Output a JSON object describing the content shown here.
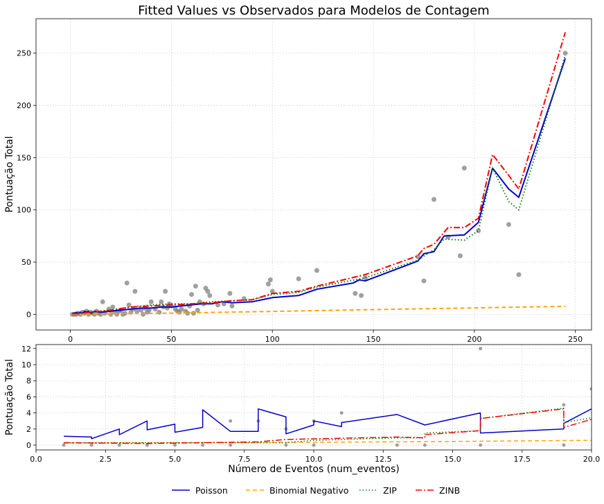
{
  "chart_data": [
    {
      "type": "line",
      "title": "Fitted Values vs Observados para Modelos de Contagem",
      "xlabel": "",
      "ylabel": "Pontuação Total",
      "xlim": [
        -17,
        258
      ],
      "ylim": [
        -15,
        283
      ],
      "xticks": [
        0,
        50,
        100,
        150,
        200,
        250
      ],
      "xtick_labels": [
        "0",
        "50",
        "100",
        "150",
        "200",
        "250"
      ],
      "yticks": [
        0,
        50,
        100,
        150,
        200,
        250
      ],
      "ytick_labels": [
        "0",
        "50",
        "100",
        "150",
        "200",
        "250"
      ],
      "grid": true,
      "scatter_observed": [
        [
          1,
          0
        ],
        [
          2,
          0
        ],
        [
          3,
          0
        ],
        [
          4,
          1
        ],
        [
          5,
          0
        ],
        [
          6,
          2
        ],
        [
          7,
          1
        ],
        [
          8,
          3
        ],
        [
          9,
          0
        ],
        [
          10,
          2
        ],
        [
          11,
          1
        ],
        [
          12,
          0
        ],
        [
          13,
          3
        ],
        [
          14,
          1
        ],
        [
          15,
          0
        ],
        [
          16,
          12
        ],
        [
          17,
          1
        ],
        [
          19,
          5
        ],
        [
          20,
          0
        ],
        [
          21,
          7
        ],
        [
          22,
          2
        ],
        [
          23,
          0
        ],
        [
          24,
          3
        ],
        [
          25,
          4
        ],
        [
          26,
          0
        ],
        [
          27,
          1
        ],
        [
          28,
          30
        ],
        [
          29,
          9
        ],
        [
          30,
          2
        ],
        [
          31,
          5
        ],
        [
          32,
          22
        ],
        [
          33,
          3
        ],
        [
          35,
          4
        ],
        [
          36,
          0
        ],
        [
          37,
          6
        ],
        [
          38,
          2
        ],
        [
          39,
          4
        ],
        [
          40,
          12
        ],
        [
          42,
          5
        ],
        [
          44,
          2
        ],
        [
          45,
          12
        ],
        [
          46,
          7
        ],
        [
          47,
          22
        ],
        [
          48,
          6
        ],
        [
          49,
          10
        ],
        [
          50,
          8
        ],
        [
          52,
          5
        ],
        [
          53,
          3
        ],
        [
          54,
          2
        ],
        [
          55,
          5
        ],
        [
          57,
          3
        ],
        [
          58,
          1
        ],
        [
          59,
          8
        ],
        [
          60,
          19
        ],
        [
          61,
          1
        ],
        [
          62,
          27
        ],
        [
          63,
          4
        ],
        [
          64,
          12
        ],
        [
          66,
          10
        ],
        [
          67,
          25
        ],
        [
          68,
          22
        ],
        [
          69,
          18
        ],
        [
          73,
          9
        ],
        [
          76,
          10
        ],
        [
          79,
          20
        ],
        [
          80,
          8
        ],
        [
          86,
          15
        ],
        [
          98,
          29
        ],
        [
          99,
          33
        ],
        [
          100,
          22
        ],
        [
          113,
          34
        ],
        [
          122,
          42
        ],
        [
          141,
          20
        ],
        [
          144,
          18
        ],
        [
          146,
          35
        ],
        [
          172,
          55
        ],
        [
          175,
          32
        ],
        [
          180,
          110
        ],
        [
          187,
          74
        ],
        [
          193,
          56
        ],
        [
          195,
          140
        ],
        [
          202,
          80
        ],
        [
          217,
          86
        ],
        [
          222,
          38
        ],
        [
          245,
          250
        ]
      ],
      "series": [
        {
          "name": "Poisson",
          "color": "#0000cc",
          "dash": "solid",
          "points": [
            [
              1,
              1
            ],
            [
              2,
              1
            ],
            [
              3,
              2
            ],
            [
              4,
              1
            ],
            [
              5,
              2
            ],
            [
              6,
              1
            ],
            [
              7,
              3
            ],
            [
              8,
              2
            ],
            [
              9,
              3
            ],
            [
              10,
              1
            ],
            [
              12,
              3
            ],
            [
              15,
              2
            ],
            [
              20,
              3
            ],
            [
              25,
              4
            ],
            [
              30,
              5
            ],
            [
              35,
              6
            ],
            [
              40,
              6
            ],
            [
              45,
              7
            ],
            [
              50,
              7
            ],
            [
              55,
              8
            ],
            [
              60,
              9
            ],
            [
              65,
              10
            ],
            [
              70,
              10
            ],
            [
              75,
              12
            ],
            [
              80,
              11
            ],
            [
              90,
              12
            ],
            [
              100,
              16
            ],
            [
              113,
              18
            ],
            [
              122,
              24
            ],
            [
              140,
              30
            ],
            [
              143,
              33
            ],
            [
              146,
              32
            ],
            [
              172,
              51
            ],
            [
              175,
              58
            ],
            [
              180,
              60
            ],
            [
              185,
              75
            ],
            [
              195,
              76
            ],
            [
              202,
              88
            ],
            [
              209,
              140
            ],
            [
              217,
              120
            ],
            [
              222,
              112
            ],
            [
              245,
              245
            ]
          ]
        },
        {
          "name": "Binomial Negativo",
          "color": "#ffa500",
          "dash": "dashed",
          "points": [
            [
              1,
              0.2
            ],
            [
              50,
              1.2
            ],
            [
              100,
              2.8
            ],
            [
              150,
              4.5
            ],
            [
              200,
              6.2
            ],
            [
              245,
              7.6
            ]
          ]
        },
        {
          "name": "ZIP",
          "color": "#008000",
          "dash": "dotted",
          "points": [
            [
              1,
              0.5
            ],
            [
              5,
              1
            ],
            [
              10,
              2
            ],
            [
              20,
              4
            ],
            [
              30,
              7
            ],
            [
              40,
              9
            ],
            [
              50,
              10
            ],
            [
              60,
              10
            ],
            [
              70,
              12
            ],
            [
              80,
              13
            ],
            [
              90,
              14
            ],
            [
              100,
              19
            ],
            [
              113,
              21
            ],
            [
              122,
              26
            ],
            [
              146,
              35
            ],
            [
              172,
              52
            ],
            [
              180,
              62
            ],
            [
              185,
              72
            ],
            [
              195,
              71
            ],
            [
              202,
              80
            ],
            [
              209,
              140
            ],
            [
              217,
              108
            ],
            [
              222,
              100
            ],
            [
              245,
              248
            ]
          ]
        },
        {
          "name": "ZINB",
          "color": "#ff0000",
          "dash": "dashdot",
          "points": [
            [
              1,
              0.5
            ],
            [
              5,
              1
            ],
            [
              10,
              2
            ],
            [
              20,
              4
            ],
            [
              30,
              7
            ],
            [
              40,
              8
            ],
            [
              50,
              9
            ],
            [
              60,
              10
            ],
            [
              70,
              11
            ],
            [
              80,
              13
            ],
            [
              90,
              14
            ],
            [
              100,
              20
            ],
            [
              113,
              22
            ],
            [
              122,
              27
            ],
            [
              146,
              38
            ],
            [
              172,
              56
            ],
            [
              175,
              63
            ],
            [
              180,
              67
            ],
            [
              187,
              83
            ],
            [
              195,
              83
            ],
            [
              202,
              92
            ],
            [
              209,
              153
            ],
            [
              217,
              133
            ],
            [
              222,
              120
            ],
            [
              245,
              270
            ]
          ]
        }
      ]
    },
    {
      "type": "line",
      "title": "",
      "xlabel": "Número de Eventos (num_eventos)",
      "ylabel": "Pontuação Total",
      "xlim": [
        0,
        20
      ],
      "ylim": [
        -0.6,
        12.5
      ],
      "xticks": [
        0,
        2.5,
        5,
        7.5,
        10,
        12.5,
        15,
        17.5,
        20
      ],
      "xtick_labels": [
        "0.0",
        "2.5",
        "5.0",
        "7.5",
        "10.0",
        "12.5",
        "15.0",
        "17.5",
        "20.0"
      ],
      "yticks": [
        0,
        2,
        4,
        6,
        8,
        10,
        12
      ],
      "ytick_labels": [
        "0",
        "2",
        "4",
        "6",
        "8",
        "10",
        "12"
      ],
      "grid": true,
      "scatter_observed": [
        [
          1,
          0
        ],
        [
          2,
          0
        ],
        [
          3,
          0
        ],
        [
          4,
          0
        ],
        [
          5,
          0
        ],
        [
          6,
          0
        ],
        [
          7,
          0
        ],
        [
          7,
          3
        ],
        [
          8,
          3
        ],
        [
          9,
          0
        ],
        [
          9,
          2
        ],
        [
          10,
          0
        ],
        [
          10,
          3
        ],
        [
          11,
          4
        ],
        [
          13,
          0
        ],
        [
          14,
          0
        ],
        [
          16,
          0
        ],
        [
          16,
          12
        ],
        [
          19,
          0
        ],
        [
          19,
          5
        ],
        [
          20,
          7
        ]
      ],
      "series": [
        {
          "name": "Poisson",
          "color": "#0000cc",
          "dash": "solid",
          "points": [
            [
              1,
              1.1
            ],
            [
              2,
              1.0
            ],
            [
              2,
              0.8
            ],
            [
              3,
              2.0
            ],
            [
              3,
              1.3
            ],
            [
              4,
              3.0
            ],
            [
              4,
              1.9
            ],
            [
              5,
              2.6
            ],
            [
              5,
              1.6
            ],
            [
              6,
              2.2
            ],
            [
              6,
              4.4
            ],
            [
              7,
              1.7
            ],
            [
              8,
              1.7
            ],
            [
              8,
              4.5
            ],
            [
              9,
              3.5
            ],
            [
              9,
              1.4
            ],
            [
              10,
              2.5
            ],
            [
              10,
              3.0
            ],
            [
              11,
              2.3
            ],
            [
              11,
              2.8
            ],
            [
              13,
              3.8
            ],
            [
              14,
              2.5
            ],
            [
              16,
              4.0
            ],
            [
              16,
              1.5
            ],
            [
              19,
              2.0
            ],
            [
              19,
              2.7
            ],
            [
              20,
              4.5
            ]
          ]
        },
        {
          "name": "Binomial Negativo",
          "color": "#ffa500",
          "dash": "dashed",
          "points": [
            [
              1,
              0.25
            ],
            [
              5,
              0.3
            ],
            [
              10,
              0.35
            ],
            [
              15,
              0.45
            ],
            [
              20,
              0.6
            ]
          ]
        },
        {
          "name": "ZIP",
          "color": "#008000",
          "dash": "dotted",
          "points": [
            [
              1,
              0.3
            ],
            [
              5,
              0.3
            ],
            [
              9,
              0.3
            ],
            [
              10,
              0.6
            ],
            [
              13,
              0.9
            ],
            [
              14,
              0.9
            ],
            [
              14,
              1.5
            ],
            [
              16,
              1.8
            ],
            [
              16,
              3.3
            ],
            [
              19,
              4.6
            ],
            [
              19,
              2.8
            ],
            [
              20,
              3.4
            ]
          ]
        },
        {
          "name": "ZINB",
          "color": "#ff0000",
          "dash": "dashdot",
          "points": [
            [
              1,
              0.3
            ],
            [
              4,
              0.2
            ],
            [
              8,
              0.4
            ],
            [
              9,
              0.7
            ],
            [
              13,
              1.0
            ],
            [
              14,
              0.9
            ],
            [
              14,
              1.3
            ],
            [
              16,
              1.8
            ],
            [
              16,
              3.3
            ],
            [
              19,
              4.5
            ],
            [
              19,
              2.2
            ],
            [
              20,
              3.2
            ]
          ]
        }
      ]
    }
  ],
  "legend": {
    "placement": "bottom-center",
    "entries": [
      "Poisson",
      "Binomial Negativo",
      "ZIP",
      "ZINB"
    ]
  }
}
